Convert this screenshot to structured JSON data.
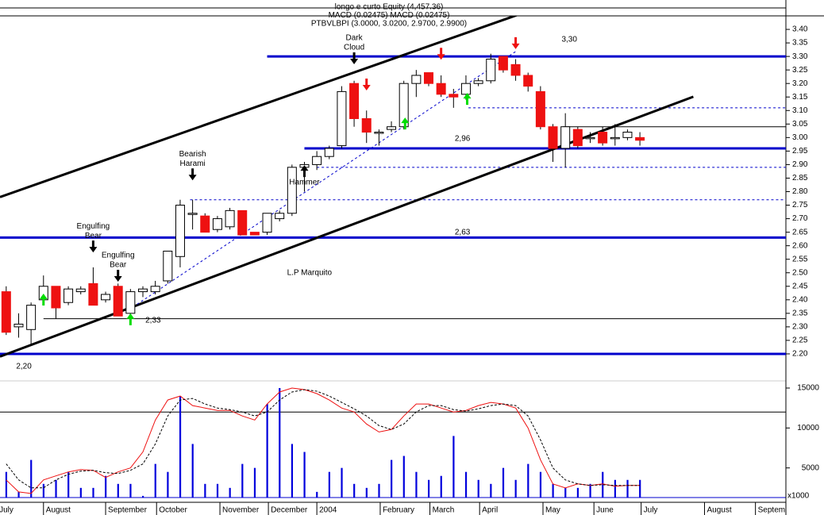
{
  "chart_data": {
    "type": "candlestick",
    "header": [
      "longo e curto Equity (4,457.36)",
      "MACD (0.02475) MACD (0.02475)",
      "PTBVLBPI (3.0000, 3.0200, 2.9700, 2.9900)"
    ],
    "x": [
      0,
      1,
      2,
      3,
      4,
      5,
      6,
      7,
      8,
      9,
      10,
      11,
      12,
      13,
      14,
      15,
      16,
      17,
      18,
      19,
      20,
      21,
      22,
      23,
      24,
      25,
      26,
      27,
      28,
      29,
      30,
      31,
      32,
      33,
      34,
      35,
      36,
      37,
      38,
      39,
      40,
      41,
      42,
      43,
      44,
      45,
      46,
      47,
      48,
      49,
      50,
      51
    ],
    "open": [
      2.43,
      2.3,
      2.29,
      2.4,
      2.45,
      2.39,
      2.43,
      2.46,
      2.4,
      2.45,
      2.35,
      2.43,
      2.43,
      2.47,
      2.56,
      2.72,
      2.71,
      2.66,
      2.67,
      2.73,
      2.65,
      2.65,
      2.7,
      2.72,
      2.89,
      2.9,
      2.93,
      2.97,
      3.2,
      3.07,
      3.02,
      3.03,
      3.04,
      3.2,
      3.24,
      3.2,
      3.16,
      3.16,
      3.2,
      3.21,
      3.3,
      3.27,
      3.23,
      3.17,
      3.04,
      2.96,
      3.03,
      3.0,
      3.02,
      3.0,
      3.0,
      3.0
    ],
    "high": [
      2.45,
      2.35,
      2.39,
      2.49,
      2.45,
      2.45,
      2.45,
      2.52,
      2.43,
      2.46,
      2.44,
      2.45,
      2.47,
      2.58,
      2.77,
      2.77,
      2.72,
      2.71,
      2.74,
      2.73,
      2.65,
      2.72,
      2.73,
      2.9,
      2.91,
      2.95,
      2.97,
      3.19,
      3.21,
      3.1,
      3.03,
      3.06,
      3.21,
      3.25,
      3.24,
      3.23,
      3.18,
      3.23,
      3.22,
      3.31,
      3.3,
      3.29,
      3.24,
      3.19,
      3.05,
      3.09,
      3.04,
      3.02,
      3.04,
      3.05,
      3.03,
      3.02
    ],
    "low": [
      2.27,
      2.26,
      2.23,
      2.39,
      2.33,
      2.38,
      2.42,
      2.38,
      2.39,
      2.34,
      2.34,
      2.41,
      2.42,
      2.46,
      2.52,
      2.66,
      2.65,
      2.65,
      2.66,
      2.64,
      2.64,
      2.64,
      2.69,
      2.71,
      2.8,
      2.88,
      2.92,
      2.96,
      3.04,
      2.98,
      2.97,
      3.02,
      3.03,
      3.15,
      3.19,
      3.15,
      3.11,
      3.14,
      3.19,
      3.2,
      3.24,
      3.21,
      3.17,
      3.03,
      2.91,
      2.89,
      2.96,
      2.98,
      2.97,
      2.97,
      2.99,
      2.97
    ],
    "close": [
      2.28,
      2.31,
      2.38,
      2.45,
      2.37,
      2.44,
      2.44,
      2.38,
      2.42,
      2.34,
      2.43,
      2.44,
      2.45,
      2.58,
      2.75,
      2.72,
      2.65,
      2.7,
      2.73,
      2.64,
      2.64,
      2.72,
      2.72,
      2.89,
      2.9,
      2.93,
      2.96,
      3.17,
      3.07,
      3.02,
      3.02,
      3.04,
      3.2,
      3.23,
      3.2,
      3.16,
      3.15,
      3.2,
      3.21,
      3.29,
      3.25,
      3.23,
      3.19,
      3.04,
      2.96,
      3.04,
      2.97,
      3.0,
      2.98,
      3.0,
      3.02,
      2.99
    ],
    "up_color": "#ffffff",
    "down_color": "#ee1111",
    "wick_color": "#000000",
    "xlim": [
      -0.5,
      62.75
    ],
    "xticks": [
      {
        "value": -0.75,
        "label": "July"
      },
      {
        "value": 3.0,
        "label": "August"
      },
      {
        "value": 8.0,
        "label": "September"
      },
      {
        "value": 12.1,
        "label": "October"
      },
      {
        "value": 17.2,
        "label": "November"
      },
      {
        "value": 21.1,
        "label": "December"
      },
      {
        "value": 25.0,
        "label": "2004"
      },
      {
        "value": 30.1,
        "label": "February"
      },
      {
        "value": 34.1,
        "label": "March"
      },
      {
        "value": 38.1,
        "label": "April"
      },
      {
        "value": 43.2,
        "label": "May"
      },
      {
        "value": 47.3,
        "label": "June"
      },
      {
        "value": 51.1,
        "label": "July"
      },
      {
        "value": 56.2,
        "label": "August"
      },
      {
        "value": 60.3,
        "label": "Septem"
      }
    ],
    "ylim": [
      2.15,
      3.45
    ],
    "yticks": [
      {
        "value": 2.2,
        "label": "2.20"
      },
      {
        "value": 2.25,
        "label": "2.25"
      },
      {
        "value": 2.3,
        "label": "2.30"
      },
      {
        "value": 2.35,
        "label": "2.35"
      },
      {
        "value": 2.4,
        "label": "2.40"
      },
      {
        "value": 2.45,
        "label": "2.45"
      },
      {
        "value": 2.5,
        "label": "2.50"
      },
      {
        "value": 2.55,
        "label": "2.55"
      },
      {
        "value": 2.6,
        "label": "2.60"
      },
      {
        "value": 2.65,
        "label": "2.65"
      },
      {
        "value": 2.7,
        "label": "2.70"
      },
      {
        "value": 2.75,
        "label": "2.75"
      },
      {
        "value": 2.8,
        "label": "2.80"
      },
      {
        "value": 2.85,
        "label": "2.85"
      },
      {
        "value": 2.9,
        "label": "2.90"
      },
      {
        "value": 2.95,
        "label": "2.95"
      },
      {
        "value": 3.0,
        "label": "3.00"
      },
      {
        "value": 3.05,
        "label": "3.05"
      },
      {
        "value": 3.1,
        "label": "3.10"
      },
      {
        "value": 3.15,
        "label": "3.15"
      },
      {
        "value": 3.2,
        "label": "3.20"
      },
      {
        "value": 3.25,
        "label": "3.25"
      },
      {
        "value": 3.3,
        "label": "3.30"
      },
      {
        "value": 3.35,
        "label": "3.35"
      },
      {
        "value": 3.4,
        "label": "3.40"
      }
    ],
    "volume": {
      "color": "#0000dd",
      "axis": "y2",
      "values": [
        4500,
        2000,
        6000,
        3000,
        3500,
        4500,
        2500,
        2500,
        4000,
        3000,
        3000,
        1500,
        5500,
        4500,
        14000,
        8000,
        3000,
        3000,
        2500,
        5500,
        5000,
        13000,
        15000,
        8000,
        7000,
        2000,
        4500,
        5000,
        3000,
        2500,
        3000,
        6000,
        6500,
        4500,
        3500,
        4000,
        9000,
        4500,
        3500,
        3000,
        5000,
        3500,
        5500,
        4500,
        3000,
        2500,
        2500,
        3000,
        4500,
        3500,
        3500,
        3500
      ]
    },
    "oscillator": [
      {
        "color": "#ee1111",
        "dash": false,
        "axis": "y2",
        "values": [
          3500,
          2000,
          1800,
          3500,
          4000,
          4500,
          4800,
          4700,
          3800,
          4500,
          5000,
          7000,
          11000,
          13500,
          14000,
          12800,
          12500,
          12200,
          12200,
          11500,
          11000,
          13000,
          14500,
          15000,
          14800,
          14300,
          13500,
          12500,
          12000,
          10500,
          9500,
          9800,
          11500,
          13000,
          13000,
          12500,
          12000,
          12200,
          12800,
          13200,
          13000,
          12500,
          10000,
          6000,
          3000,
          2500,
          3000,
          2800,
          3000,
          2700,
          2800,
          2800
        ]
      },
      {
        "color": "#000000",
        "dash": true,
        "axis": "y2",
        "values": [
          5500,
          3500,
          2500,
          2500,
          3500,
          4200,
          4600,
          4700,
          4400,
          4300,
          4700,
          5500,
          8000,
          11500,
          13500,
          13700,
          13000,
          12500,
          12300,
          12000,
          11500,
          12000,
          13500,
          14500,
          14800,
          14600,
          14000,
          13200,
          12400,
          11500,
          10300,
          9800,
          10500,
          12000,
          12800,
          12800,
          12300,
          12100,
          12400,
          12800,
          13000,
          12800,
          11500,
          8500,
          5000,
          3500,
          3000,
          2800,
          2900,
          2800,
          2800,
          2800
        ]
      }
    ],
    "y2lim": [
      0,
      15000
    ],
    "y2ticks": [
      5000,
      10000,
      15000
    ],
    "y2_levels": [
      12000
    ],
    "y2_unit": "x1000",
    "levels": [
      {
        "value": 3.3,
        "label": "3,30",
        "from": 21,
        "label_x": 44.7,
        "label_y": 3.362,
        "color": "#0000cc",
        "width": 3
      },
      {
        "value": 2.96,
        "label": "2,96",
        "from": 24,
        "label_x": 36.1,
        "label_y": 2.995,
        "color": "#0000cc",
        "width": 3
      },
      {
        "value": 2.63,
        "label": "2,63",
        "from": -0.5,
        "label_x": 36.1,
        "label_y": 2.649,
        "color": "#0000cc",
        "width": 3
      },
      {
        "value": 2.2,
        "label": "2,20",
        "from": -0.5,
        "label_x": 0.8,
        "label_y": 2.153,
        "color": "#0000cc",
        "width": 3
      }
    ],
    "guides": [
      {
        "value": 3.04,
        "from": 44.8,
        "color": "#000000",
        "dash": false
      },
      {
        "value": 2.33,
        "from": 3.0,
        "color": "#000000",
        "dash": false
      },
      {
        "value": 3.11,
        "from": 37.2,
        "color": "#0000cc",
        "dash": true
      },
      {
        "value": 2.89,
        "from": 25.0,
        "color": "#0000cc",
        "dash": true
      },
      {
        "value": 2.77,
        "from": 14.8,
        "color": "#0000cc",
        "dash": true
      }
    ],
    "lines": [
      {
        "x": [
          -0.5,
          41.3
        ],
        "y": [
          2.78,
          3.456
        ],
        "color": "#000000",
        "width": 3,
        "dash": false
      },
      {
        "x": [
          -0.5,
          55.3
        ],
        "y": [
          2.19,
          3.151
        ],
        "color": "#000000",
        "width": 3,
        "dash": false
      },
      {
        "x": [
          9.9,
          41.0
        ],
        "y": [
          2.364,
          3.318
        ],
        "color": "#0000cc",
        "width": 1,
        "dash": true
      }
    ],
    "annotations": [
      {
        "text": [
          "Engulfing",
          "Bear"
        ],
        "x": 7,
        "y": 2.575,
        "dir": "down",
        "color": "#000000"
      },
      {
        "text": [
          "Engulfing",
          "Bear"
        ],
        "x": 9,
        "y": 2.467,
        "dir": "down",
        "color": "#000000"
      },
      {
        "text": [
          "Bearish",
          "Harami"
        ],
        "x": 15,
        "y": 2.842,
        "dir": "down",
        "color": "#000000"
      },
      {
        "text": [
          "Dark",
          "Cloud"
        ],
        "x": 28,
        "y": 3.271,
        "dir": "down",
        "color": "#000000"
      },
      {
        "text": [
          "Hammer"
        ],
        "x": 24,
        "y": 2.898,
        "dir": "up",
        "color": "#000000"
      },
      {
        "x": 29,
        "y": 3.174,
        "dir": "down",
        "color": "#ee1111"
      },
      {
        "x": 35,
        "y": 3.288,
        "dir": "down",
        "color": "#ee1111"
      },
      {
        "x": 41,
        "y": 3.327,
        "dir": "down",
        "color": "#ee1111"
      },
      {
        "x": 3,
        "y": 2.423,
        "dir": "up",
        "color": "#00dd00"
      },
      {
        "x": 10,
        "y": 2.35,
        "dir": "up",
        "color": "#00dd00"
      },
      {
        "x": 32.1,
        "y": 3.074,
        "dir": "up",
        "color": "#00dd00"
      },
      {
        "x": 37.1,
        "y": 3.165,
        "dir": "up",
        "color": "#00dd00"
      }
    ],
    "notes": [
      {
        "text": "L.P Marquito",
        "x": 22.6,
        "y": 2.499,
        "color": "#0000cc"
      },
      {
        "text": "2,33",
        "x": 11.2,
        "y": 2.323,
        "color": "#0000cc"
      }
    ]
  }
}
